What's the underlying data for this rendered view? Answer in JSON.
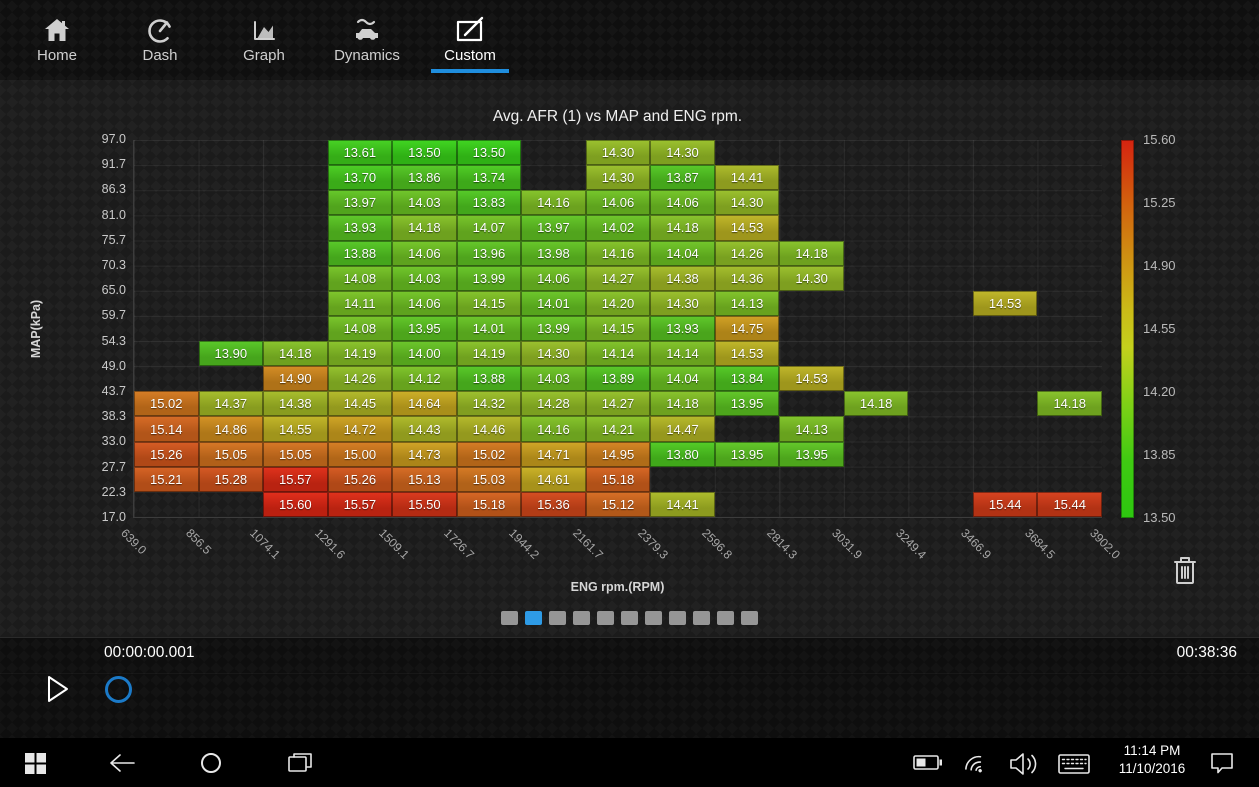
{
  "nav": {
    "active_color": "#1f8ede",
    "items": [
      {
        "label": "Home",
        "icon": "home-icon",
        "active": false
      },
      {
        "label": "Dash",
        "icon": "dash-icon",
        "active": false
      },
      {
        "label": "Graph",
        "icon": "graph-icon",
        "active": false
      },
      {
        "label": "Dynamics",
        "icon": "dynamics-icon",
        "active": false
      },
      {
        "label": "Custom",
        "icon": "custom-icon",
        "active": true
      }
    ]
  },
  "chart_data": {
    "type": "heatmap",
    "title": "Avg. AFR (1) vs MAP and ENG rpm.",
    "xlabel": "ENG rpm.(RPM)",
    "ylabel": "MAP(kPa)",
    "x_ticks": [
      "639.0",
      "856.5",
      "1074.1",
      "1291.6",
      "1509.1",
      "1726.7",
      "1944.2",
      "2161.7",
      "2379.3",
      "2596.8",
      "2814.3",
      "3031.9",
      "3249.4",
      "3466.9",
      "3684.5",
      "3902.0"
    ],
    "y_ticks": [
      "97.0",
      "91.7",
      "86.3",
      "81.0",
      "75.7",
      "70.3",
      "65.0",
      "59.7",
      "54.3",
      "49.0",
      "43.7",
      "38.3",
      "33.0",
      "27.7",
      "22.3",
      "17.0"
    ],
    "grid": true,
    "colorbar": {
      "min": 13.5,
      "max": 15.6,
      "ticks": [
        "15.60",
        "15.25",
        "14.90",
        "14.55",
        "14.20",
        "13.85",
        "13.50"
      ],
      "gradient": [
        [
          0,
          "#d42310"
        ],
        [
          15,
          "#d25b0e"
        ],
        [
          30,
          "#cf8d12"
        ],
        [
          45,
          "#cbbb18"
        ],
        [
          55,
          "#c3d01d"
        ],
        [
          70,
          "#7ed016"
        ],
        [
          85,
          "#3fca12"
        ],
        [
          100,
          "#2dc710"
        ]
      ]
    },
    "cell_color_stops": [
      [
        13.5,
        "#2fb015"
      ],
      [
        13.9,
        "#46a51c"
      ],
      [
        14.1,
        "#64a31e"
      ],
      [
        14.3,
        "#7e9f20"
      ],
      [
        14.45,
        "#93991e"
      ],
      [
        14.6,
        "#a7931b"
      ],
      [
        14.78,
        "#ae8018"
      ],
      [
        14.95,
        "#b06c18"
      ],
      [
        15.1,
        "#b25a19"
      ],
      [
        15.3,
        "#b04317"
      ],
      [
        15.45,
        "#b23114"
      ],
      [
        15.6,
        "#bb2010"
      ]
    ],
    "cells": [
      [
        0,
        3,
        13.61
      ],
      [
        0,
        4,
        13.5
      ],
      [
        0,
        5,
        13.5
      ],
      [
        0,
        7,
        14.3
      ],
      [
        0,
        8,
        14.3
      ],
      [
        1,
        3,
        13.7
      ],
      [
        1,
        4,
        13.86
      ],
      [
        1,
        5,
        13.74
      ],
      [
        1,
        7,
        14.3
      ],
      [
        1,
        8,
        13.87
      ],
      [
        1,
        9,
        14.41
      ],
      [
        2,
        3,
        13.97
      ],
      [
        2,
        4,
        14.03
      ],
      [
        2,
        5,
        13.83
      ],
      [
        2,
        6,
        14.16
      ],
      [
        2,
        7,
        14.06
      ],
      [
        2,
        8,
        14.06
      ],
      [
        2,
        9,
        14.3
      ],
      [
        3,
        3,
        13.93
      ],
      [
        3,
        4,
        14.18
      ],
      [
        3,
        5,
        14.07
      ],
      [
        3,
        6,
        13.97
      ],
      [
        3,
        7,
        14.02
      ],
      [
        3,
        8,
        14.18
      ],
      [
        3,
        9,
        14.53
      ],
      [
        4,
        3,
        13.88
      ],
      [
        4,
        4,
        14.06
      ],
      [
        4,
        5,
        13.96
      ],
      [
        4,
        6,
        13.98
      ],
      [
        4,
        7,
        14.16
      ],
      [
        4,
        8,
        14.04
      ],
      [
        4,
        9,
        14.26
      ],
      [
        4,
        10,
        14.18
      ],
      [
        5,
        3,
        14.08
      ],
      [
        5,
        4,
        14.03
      ],
      [
        5,
        5,
        13.99
      ],
      [
        5,
        6,
        14.06
      ],
      [
        5,
        7,
        14.27
      ],
      [
        5,
        8,
        14.38
      ],
      [
        5,
        9,
        14.36
      ],
      [
        5,
        10,
        14.3
      ],
      [
        6,
        3,
        14.11
      ],
      [
        6,
        4,
        14.06
      ],
      [
        6,
        5,
        14.15
      ],
      [
        6,
        6,
        14.01
      ],
      [
        6,
        7,
        14.2
      ],
      [
        6,
        8,
        14.3
      ],
      [
        6,
        9,
        14.13
      ],
      [
        6,
        13,
        14.53
      ],
      [
        7,
        3,
        14.08
      ],
      [
        7,
        4,
        13.95
      ],
      [
        7,
        5,
        14.01
      ],
      [
        7,
        6,
        13.99
      ],
      [
        7,
        7,
        14.15
      ],
      [
        7,
        8,
        13.93
      ],
      [
        7,
        9,
        14.75
      ],
      [
        8,
        1,
        13.9
      ],
      [
        8,
        2,
        14.18
      ],
      [
        8,
        3,
        14.19
      ],
      [
        8,
        4,
        14.0
      ],
      [
        8,
        5,
        14.19
      ],
      [
        8,
        6,
        14.3
      ],
      [
        8,
        7,
        14.14
      ],
      [
        8,
        8,
        14.14
      ],
      [
        8,
        9,
        14.53
      ],
      [
        9,
        2,
        14.9
      ],
      [
        9,
        3,
        14.26
      ],
      [
        9,
        4,
        14.12
      ],
      [
        9,
        5,
        13.88
      ],
      [
        9,
        6,
        14.03
      ],
      [
        9,
        7,
        13.89
      ],
      [
        9,
        8,
        14.04
      ],
      [
        9,
        9,
        13.84
      ],
      [
        9,
        10,
        14.53
      ],
      [
        10,
        0,
        15.02
      ],
      [
        10,
        1,
        14.37
      ],
      [
        10,
        2,
        14.38
      ],
      [
        10,
        3,
        14.45
      ],
      [
        10,
        4,
        14.64
      ],
      [
        10,
        5,
        14.32
      ],
      [
        10,
        6,
        14.28
      ],
      [
        10,
        7,
        14.27
      ],
      [
        10,
        8,
        14.18
      ],
      [
        10,
        9,
        13.95
      ],
      [
        10,
        11,
        14.18
      ],
      [
        10,
        14,
        14.18
      ],
      [
        11,
        0,
        15.14
      ],
      [
        11,
        1,
        14.86
      ],
      [
        11,
        2,
        14.55
      ],
      [
        11,
        3,
        14.72
      ],
      [
        11,
        4,
        14.43
      ],
      [
        11,
        5,
        14.46
      ],
      [
        11,
        6,
        14.16
      ],
      [
        11,
        7,
        14.21
      ],
      [
        11,
        8,
        14.47
      ],
      [
        11,
        10,
        14.13
      ],
      [
        12,
        0,
        15.26
      ],
      [
        12,
        1,
        15.05
      ],
      [
        12,
        2,
        15.05
      ],
      [
        12,
        3,
        15.0
      ],
      [
        12,
        4,
        14.73
      ],
      [
        12,
        5,
        15.02
      ],
      [
        12,
        6,
        14.71
      ],
      [
        12,
        7,
        14.95
      ],
      [
        12,
        8,
        13.8
      ],
      [
        12,
        9,
        13.95
      ],
      [
        12,
        10,
        13.95
      ],
      [
        13,
        0,
        15.21
      ],
      [
        13,
        1,
        15.28
      ],
      [
        13,
        2,
        15.57
      ],
      [
        13,
        3,
        15.26
      ],
      [
        13,
        4,
        15.13
      ],
      [
        13,
        5,
        15.03
      ],
      [
        13,
        6,
        14.61
      ],
      [
        13,
        7,
        15.18
      ],
      [
        14,
        2,
        15.6
      ],
      [
        14,
        3,
        15.57
      ],
      [
        14,
        4,
        15.5
      ],
      [
        14,
        5,
        15.18
      ],
      [
        14,
        6,
        15.36
      ],
      [
        14,
        7,
        15.12
      ],
      [
        14,
        8,
        14.41
      ],
      [
        14,
        13,
        15.44
      ],
      [
        14,
        14,
        15.44
      ]
    ]
  },
  "pagination": {
    "count": 11,
    "active_index": 1,
    "active_color": "#2e9be6",
    "inactive_color": "#969696"
  },
  "timeline": {
    "current_time": "00:00:00.001",
    "total_time": "00:38:36",
    "scrubber_color": "#1b7ac8"
  },
  "taskbar": {
    "time": "11:14 PM",
    "date": "11/10/2016"
  }
}
